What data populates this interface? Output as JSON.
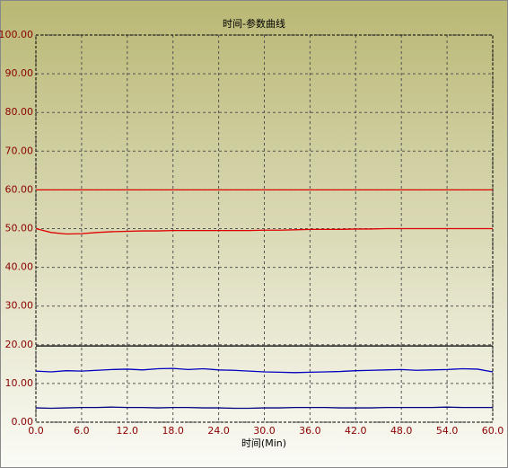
{
  "chart_data": {
    "type": "line",
    "title": "时间-参数曲线",
    "x_label": "时间(Min)",
    "x": [
      0,
      2,
      4,
      6,
      8,
      10,
      12,
      14,
      16,
      18,
      20,
      22,
      24,
      26,
      28,
      30,
      32,
      34,
      36,
      38,
      40,
      42,
      44,
      46,
      48,
      50,
      52,
      54,
      56,
      58,
      60
    ],
    "series": [
      {
        "color": "#e00000",
        "values": [
          60,
          60,
          60,
          60,
          60,
          60,
          60,
          60,
          60,
          60,
          60,
          60,
          60,
          60,
          60,
          60,
          60,
          60,
          60,
          60,
          60,
          60,
          60,
          60,
          60,
          60,
          60,
          60,
          60,
          60,
          60
        ]
      },
      {
        "color": "#e00000",
        "values": [
          50,
          49,
          48.6,
          48.7,
          49,
          49.2,
          49.3,
          49.4,
          49.4,
          49.5,
          49.5,
          49.5,
          49.5,
          49.5,
          49.5,
          49.6,
          49.6,
          49.7,
          49.8,
          49.8,
          49.8,
          49.9,
          49.9,
          50,
          50,
          50,
          50,
          50,
          50,
          50,
          50
        ]
      },
      {
        "color": "#000000",
        "values": [
          19.7,
          19.7,
          19.7,
          19.7,
          19.7,
          19.7,
          19.7,
          19.7,
          19.7,
          19.7,
          19.7,
          19.7,
          19.7,
          19.7,
          19.7,
          19.7,
          19.7,
          19.7,
          19.7,
          19.7,
          19.7,
          19.7,
          19.7,
          19.7,
          19.7,
          19.7,
          19.7,
          19.7,
          19.7,
          19.7,
          19.7
        ]
      },
      {
        "color": "#0000c0",
        "values": [
          13.2,
          13,
          13.3,
          13.2,
          13.4,
          13.6,
          13.7,
          13.5,
          13.8,
          13.9,
          13.6,
          13.8,
          13.5,
          13.4,
          13.2,
          13,
          12.9,
          12.8,
          12.9,
          13,
          13.1,
          13.3,
          13.4,
          13.5,
          13.6,
          13.4,
          13.5,
          13.6,
          13.8,
          13.7,
          13
        ]
      },
      {
        "color": "#000080",
        "values": [
          3.7,
          3.6,
          3.7,
          3.8,
          3.8,
          3.9,
          3.8,
          3.8,
          3.7,
          3.8,
          3.8,
          3.7,
          3.7,
          3.6,
          3.6,
          3.7,
          3.7,
          3.8,
          3.8,
          3.8,
          3.7,
          3.7,
          3.7,
          3.8,
          3.8,
          3.8,
          3.8,
          3.9,
          3.8,
          3.8,
          3.8
        ]
      }
    ],
    "xlim": [
      0,
      60
    ],
    "xticks": [
      {
        "value": 0,
        "label": "0.0"
      },
      {
        "value": 6,
        "label": "6.0"
      },
      {
        "value": 12,
        "label": "12.0"
      },
      {
        "value": 18,
        "label": "18.0"
      },
      {
        "value": 24,
        "label": "24.0"
      },
      {
        "value": 30,
        "label": "30.0"
      },
      {
        "value": 36,
        "label": "36.0"
      },
      {
        "value": 42,
        "label": "42.0"
      },
      {
        "value": 48,
        "label": "48.0"
      },
      {
        "value": 54,
        "label": "54.0"
      },
      {
        "value": 60,
        "label": "60.0"
      }
    ],
    "ylim": [
      0,
      100
    ],
    "yticks": [
      {
        "value": 0,
        "label": "0.00"
      },
      {
        "value": 10,
        "label": "10.00"
      },
      {
        "value": 20,
        "label": "20.00"
      },
      {
        "value": 30,
        "label": "30.00"
      },
      {
        "value": 40,
        "label": "40.00"
      },
      {
        "value": 50,
        "label": "50.00"
      },
      {
        "value": 60,
        "label": "60.00"
      },
      {
        "value": 70,
        "label": "70.00"
      },
      {
        "value": 80,
        "label": "80.00"
      },
      {
        "value": 90,
        "label": "90.00"
      },
      {
        "value": 100,
        "label": "100.00"
      }
    ],
    "grid": true
  }
}
